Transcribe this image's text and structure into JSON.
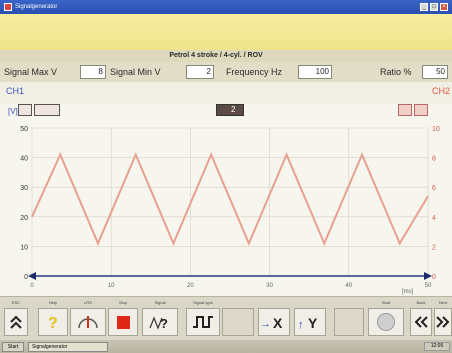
{
  "window": {
    "title": "Signalgenerator"
  },
  "info": {
    "text": "Petrol 4 stroke / 4-cyl. / ROV"
  },
  "params": {
    "signal_max_label": "Signal Max  V",
    "signal_max_value": "8",
    "signal_min_label": "Signal Min  V",
    "signal_min_value": "2",
    "frequency_label": "Frequency Hz",
    "frequency_value": "100",
    "ratio_label": "Ratio %",
    "ratio_value": "50"
  },
  "channels": {
    "ch1_label": "CH1",
    "ch2_label": "CH2",
    "ch1_unit": "[V]",
    "trigger_label": "2"
  },
  "chart_data": {
    "type": "line",
    "series": [
      {
        "x": [
          0,
          6,
          14,
          22,
          30,
          38,
          46,
          54,
          62,
          70,
          78,
          84
        ],
        "y": [
          20,
          41,
          11,
          41,
          11,
          41,
          11,
          41,
          11,
          41,
          11,
          27
        ]
      }
    ],
    "y_left_ticks": [
      "50",
      "40",
      "30",
      "20",
      "10",
      "0"
    ],
    "y_right_ticks": [
      "10",
      "8",
      "6",
      "4",
      "2",
      "0"
    ],
    "x_ticks": [
      "0",
      "10",
      "20",
      "30",
      "40",
      "50"
    ],
    "x_unit": "[ms]",
    "ylim": [
      0,
      50
    ],
    "xlim": [
      0,
      84
    ],
    "colors": {
      "trace": "#e8a090",
      "axis": "#2a3a8a",
      "grid": "#d4d2c4"
    }
  },
  "toolbar": {
    "buttons": [
      {
        "name": "esc-button",
        "caption": "ESC",
        "icon": "double-up-chevron-icon"
      },
      {
        "name": "help-button",
        "caption": "Help",
        "icon": "question-mark-icon"
      },
      {
        "name": "lrs-button",
        "caption": "LRS",
        "icon": "gauge-icon"
      },
      {
        "name": "stop-button",
        "caption": "Stop",
        "icon": "stop-icon"
      },
      {
        "name": "signal-button",
        "caption": "Signal",
        "icon": "signal-help-icon"
      },
      {
        "name": "signal-type-button",
        "caption": "Signal type",
        "icon": "square-wave-icon"
      },
      {
        "name": "x-cursor-button",
        "caption": "",
        "icon": "arrow-x-icon"
      },
      {
        "name": "y-cursor-button",
        "caption": "",
        "icon": "arrow-y-icon"
      },
      {
        "name": "start-button",
        "caption": "Start",
        "icon": "start-circle-icon"
      },
      {
        "name": "back-button",
        "caption": "Back",
        "icon": "double-left-chevron-icon"
      },
      {
        "name": "next-button",
        "caption": "Next",
        "icon": "double-right-chevron-icon"
      }
    ]
  },
  "taskbar": {
    "start_label": "Start",
    "task_label": "Signalgenerator",
    "tray_label": "12:05"
  }
}
